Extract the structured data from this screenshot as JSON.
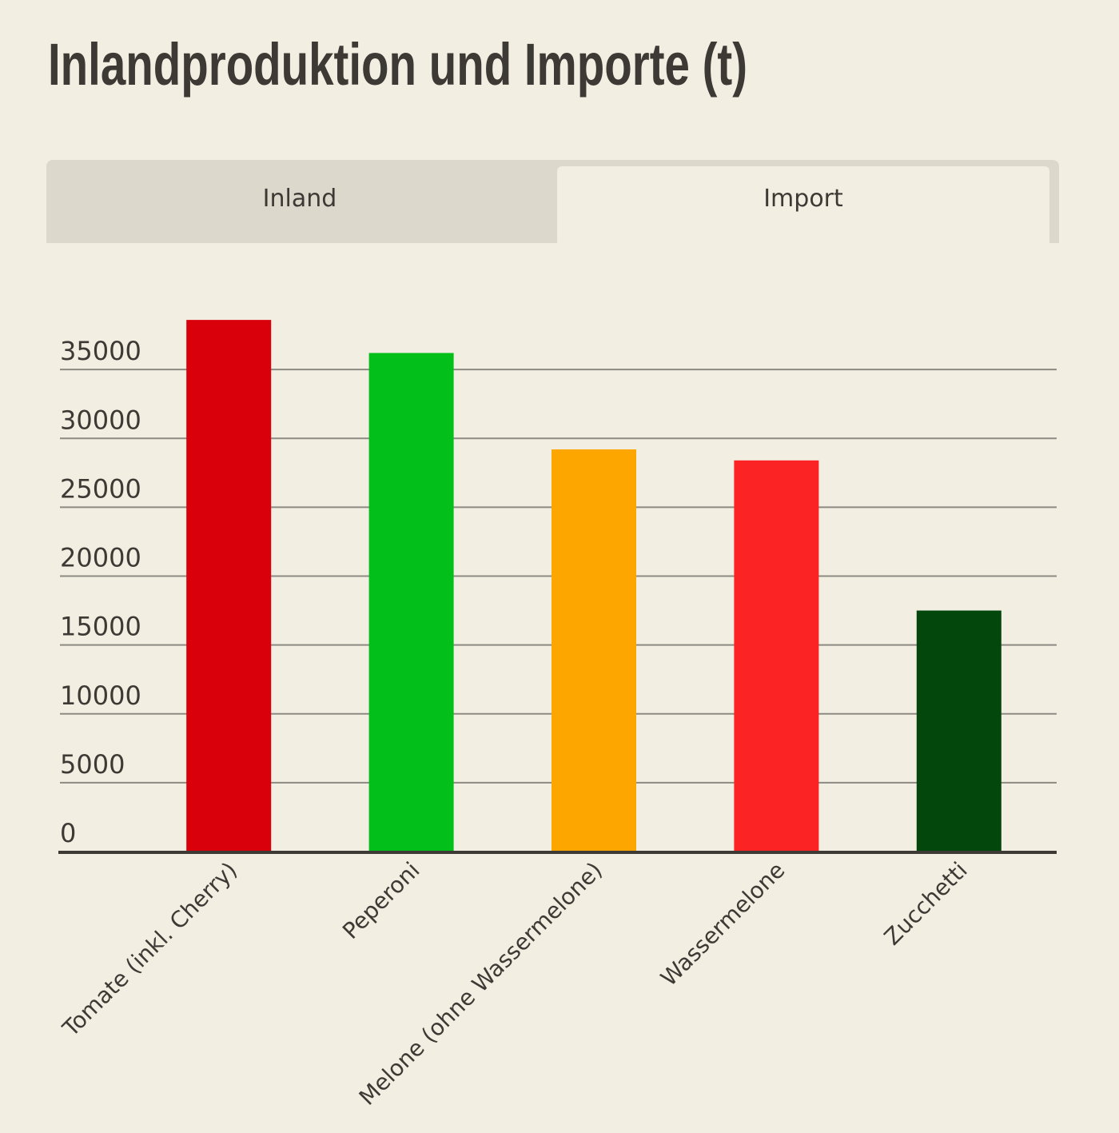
{
  "header": {
    "title": "Inlandproduktion und Importe (t)"
  },
  "tabs": [
    "Inland",
    "Import"
  ],
  "chart_data": {
    "type": "bar",
    "categories": [
      "Tomate (inkl. Cherry)",
      "Peperoni",
      "Melone (ohne Wassermelone)",
      "Wassermelone",
      "Zucchetti"
    ],
    "values": [
      38600,
      36200,
      29200,
      28400,
      17500
    ],
    "colors": [
      "#d9000b",
      "#03bf19",
      "#fea600",
      "#fb2323",
      "#03470c"
    ],
    "ylim": [
      0,
      40000
    ],
    "yticks": [
      0,
      5000,
      10000,
      15000,
      20000,
      25000,
      30000,
      35000
    ],
    "grid": true
  }
}
